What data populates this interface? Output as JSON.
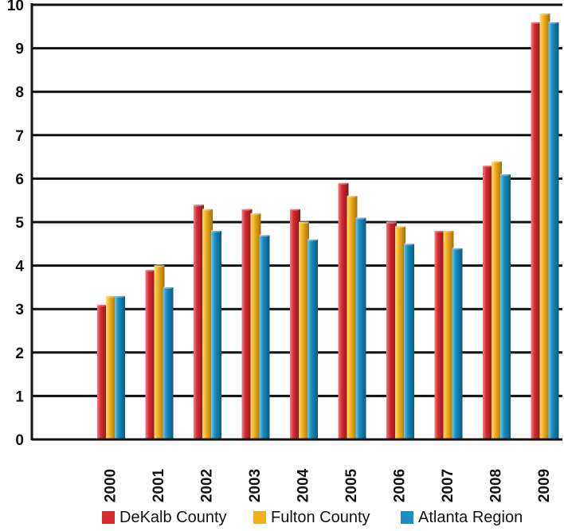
{
  "chart_data": {
    "type": "bar",
    "categories": [
      "2000",
      "2001",
      "2002",
      "2003",
      "2004",
      "2005",
      "2006",
      "2007",
      "2008",
      "2009"
    ],
    "series": [
      {
        "name": "DeKalb County",
        "color": "#d42a32",
        "values": [
          3.1,
          3.9,
          5.4,
          5.3,
          5.3,
          5.9,
          5.0,
          4.8,
          6.3,
          9.6
        ]
      },
      {
        "name": "Fulton County",
        "color": "#f2b01e",
        "values": [
          3.3,
          4.0,
          5.3,
          5.2,
          5.0,
          5.6,
          4.9,
          4.8,
          6.4,
          9.8
        ]
      },
      {
        "name": "Atlanta Region",
        "color": "#1a8ec4",
        "values": [
          3.3,
          3.5,
          4.8,
          4.7,
          4.6,
          5.1,
          4.5,
          4.4,
          6.1,
          9.6
        ]
      }
    ],
    "ylim": [
      0,
      10
    ],
    "yticks": [
      "0",
      "1",
      "2",
      "3",
      "4",
      "5",
      "6",
      "7",
      "8",
      "9",
      "10"
    ],
    "grid": true,
    "legend_position": "bottom"
  }
}
